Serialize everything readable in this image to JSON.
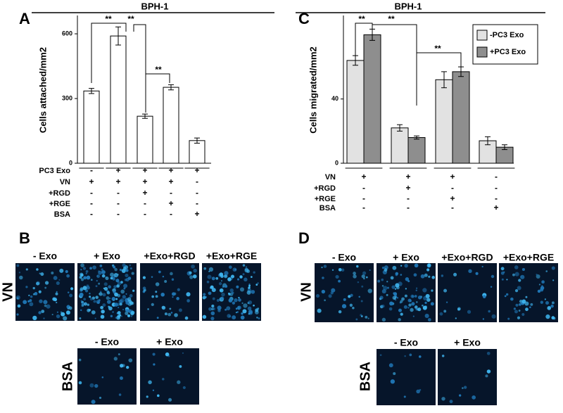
{
  "chart_data": [
    {
      "type": "bar",
      "panel": "A",
      "title": "BPH-1",
      "ylabel": "Cells attached/mm2",
      "categories": [
        null,
        null,
        null,
        null,
        null
      ],
      "values": [
        335,
        590,
        218,
        352,
        105
      ],
      "errors": [
        12,
        42,
        10,
        12,
        12
      ],
      "color": "#ffffff",
      "ylim": [
        0,
        685
      ],
      "yticks": [
        0,
        300,
        600
      ],
      "condition_rows": [
        {
          "label": "PC3 Exo",
          "marks": [
            "-",
            "+",
            "+",
            "+",
            "+"
          ]
        },
        {
          "label": "VN",
          "marks": [
            "+",
            "+",
            "+",
            "+",
            "-"
          ]
        },
        {
          "label": "+RGD",
          "marks": [
            "-",
            "-",
            "+",
            "-",
            "-"
          ]
        },
        {
          "label": "+RGE",
          "marks": [
            "-",
            "-",
            "-",
            "+",
            "-"
          ]
        },
        {
          "label": "BSA",
          "marks": [
            "-",
            "-",
            "-",
            "-",
            "+"
          ]
        }
      ],
      "annotations": [
        "**",
        "**",
        "**"
      ]
    },
    {
      "type": "grouped-bar",
      "panel": "C",
      "title": "BPH-1",
      "ylabel": "Cells migrated/mm2",
      "categories": [
        null,
        null,
        null,
        null
      ],
      "series": [
        {
          "name": "-PC3 Exo",
          "color": "#e2e2e2",
          "values": [
            64,
            22,
            52,
            14
          ],
          "errors": [
            3,
            2,
            5,
            2.5
          ]
        },
        {
          "name": "+PC3 Exo",
          "color": "#8e8e8e",
          "values": [
            80,
            16,
            57,
            10
          ],
          "errors": [
            3.5,
            1,
            3,
            1.5
          ]
        }
      ],
      "ylim": [
        0,
        92
      ],
      "yticks": [
        0,
        40
      ],
      "legend": "top-right",
      "condition_rows": [
        {
          "label": "VN",
          "marks": [
            "+",
            "+",
            "+",
            "-"
          ]
        },
        {
          "label": "+RGD",
          "marks": [
            "-",
            "+",
            "-",
            "-"
          ]
        },
        {
          "label": "+RGE",
          "marks": [
            "-",
            "-",
            "+",
            "-"
          ]
        },
        {
          "label": "BSA",
          "marks": [
            "-",
            "-",
            "-",
            "+"
          ]
        }
      ],
      "annotations": [
        "**",
        "**",
        "**"
      ]
    }
  ],
  "micrographs": [
    {
      "panel": "B",
      "rows": [
        {
          "label": "VN",
          "columns": [
            "- Exo",
            "+ Exo",
            "+Exo+RGD",
            "+Exo+RGE"
          ]
        },
        {
          "label": "BSA",
          "columns": [
            "- Exo",
            "+ Exo"
          ]
        }
      ]
    },
    {
      "panel": "D",
      "rows": [
        {
          "label": "VN",
          "columns": [
            "- Exo",
            "+ Exo",
            "+Exo+RGD",
            "+Exo+RGE"
          ]
        },
        {
          "label": "BSA",
          "columns": [
            "- Exo",
            "+ Exo"
          ]
        }
      ]
    }
  ]
}
